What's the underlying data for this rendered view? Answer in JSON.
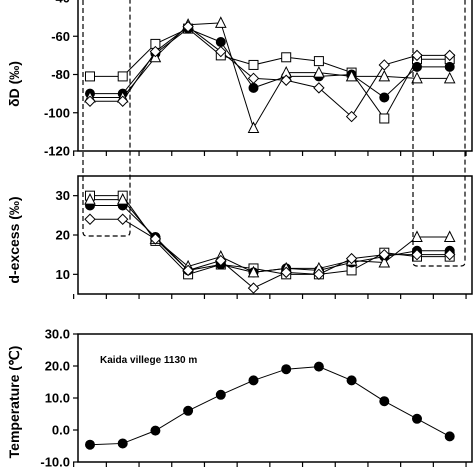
{
  "chart_data": [
    {
      "type": "line",
      "ylabel": "δD (‰)",
      "ylim": [
        -120,
        -40
      ],
      "yticks": [
        -120,
        -100,
        -80,
        -60,
        -40
      ],
      "ytick_labels": [
        "-120",
        "-100",
        "-80",
        "-60",
        "-40"
      ],
      "x": [
        1,
        2,
        3,
        4,
        5,
        6,
        7,
        8,
        9,
        10,
        11,
        12
      ],
      "series": [
        {
          "marker": "square-open",
          "values": [
            -81,
            -81,
            -64,
            -56,
            -70,
            -75,
            -71,
            -73,
            -79,
            -103,
            -72,
            -72
          ]
        },
        {
          "marker": "circle-filled",
          "values": [
            -90,
            -90,
            -69,
            -56,
            -63,
            -87,
            -81,
            -81,
            -80,
            -92,
            -76,
            -76
          ]
        },
        {
          "marker": "triangle-open",
          "values": [
            -92,
            -92,
            -71,
            -54,
            -53,
            -108,
            -79,
            -79,
            -81,
            -81,
            -82,
            -82
          ]
        },
        {
          "marker": "diamond-open",
          "values": [
            -94,
            -94,
            -68,
            -55,
            -68,
            -82,
            -83,
            -87,
            -102,
            -75,
            -70,
            -70
          ]
        }
      ],
      "grid": false
    },
    {
      "type": "line",
      "ylabel": "d-excess (‰)",
      "ylim": [
        5,
        35
      ],
      "yticks": [
        10,
        20,
        30
      ],
      "ytick_labels": [
        "10",
        "20",
        "30"
      ],
      "x": [
        1,
        2,
        3,
        4,
        5,
        6,
        7,
        8,
        9,
        10,
        11,
        12
      ],
      "series": [
        {
          "marker": "square-open",
          "values": [
            30,
            30,
            18.5,
            10,
            12.5,
            11.5,
            10,
            10,
            11,
            15.5,
            14.5,
            14.5
          ]
        },
        {
          "marker": "circle-filled",
          "values": [
            27.5,
            27.5,
            19.5,
            11,
            12.5,
            10.5,
            11.5,
            11,
            13,
            14.5,
            16,
            16
          ]
        },
        {
          "marker": "triangle-open",
          "values": [
            29,
            29,
            19,
            12,
            14.5,
            10.5,
            11.5,
            11.5,
            13.5,
            13,
            19.5,
            19.5
          ]
        },
        {
          "marker": "diamond-open",
          "values": [
            24,
            24,
            19,
            11,
            13.5,
            6.5,
            10.5,
            10,
            14,
            15,
            15,
            15
          ]
        }
      ],
      "grid": false
    },
    {
      "type": "line",
      "ylabel": "Temperature (℃)",
      "ylim": [
        -10,
        30
      ],
      "yticks": [
        -10,
        0,
        10,
        20,
        30
      ],
      "ytick_labels": [
        "-10.0",
        "0.0",
        "10.0",
        "20.0",
        "30.0"
      ],
      "annotation": "Kaida villege 1130 m",
      "x": [
        1,
        2,
        3,
        4,
        5,
        6,
        7,
        8,
        9,
        10,
        11,
        12
      ],
      "series": [
        {
          "marker": "circle-filled",
          "values": [
            -4.6,
            -4.2,
            -0.2,
            6.0,
            11.0,
            15.5,
            19.0,
            19.8,
            15.5,
            9.0,
            3.5,
            -2.0
          ]
        }
      ],
      "grid": false
    }
  ]
}
